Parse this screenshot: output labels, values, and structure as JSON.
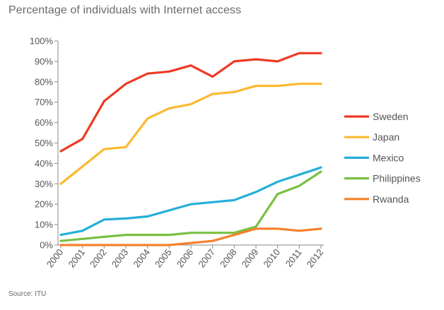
{
  "chart_data": {
    "type": "line",
    "title": "Percentage of individuals with Internet access",
    "xlabel": "",
    "ylabel": "",
    "categories": [
      "2000",
      "2001",
      "2002",
      "2003",
      "2004",
      "2005",
      "2006",
      "2007",
      "2008",
      "2009",
      "2010",
      "2011",
      "2012"
    ],
    "y_ticks": [
      "0%",
      "10%",
      "20%",
      "30%",
      "40%",
      "50%",
      "60%",
      "70%",
      "80%",
      "90%",
      "100%"
    ],
    "ylim": [
      0,
      100
    ],
    "grid": false,
    "legend_position": "right",
    "series": [
      {
        "name": "Sweden",
        "color": "#ee3a24",
        "values": [
          46,
          52,
          70.5,
          79,
          84,
          85,
          88,
          82.5,
          90,
          91,
          90,
          94,
          94
        ]
      },
      {
        "name": "Japan",
        "color": "#fbb92f",
        "values": [
          30,
          38.5,
          47,
          48,
          62,
          67,
          69,
          74,
          75,
          78,
          78,
          79,
          79
        ]
      },
      {
        "name": "Mexico",
        "color": "#25afd8",
        "values": [
          5,
          7,
          12.5,
          13,
          14,
          17,
          20,
          21,
          22,
          26,
          31,
          34.5,
          38
        ]
      },
      {
        "name": "Philippines",
        "color": "#77c043",
        "values": [
          2,
          3,
          4,
          5,
          5,
          5,
          6,
          6,
          6,
          9,
          25,
          29,
          36
        ]
      },
      {
        "name": "Rwanda",
        "color": "#f5812d",
        "values": [
          0,
          0,
          0,
          0,
          0,
          0,
          1,
          2,
          5,
          8,
          8,
          7,
          8
        ]
      }
    ]
  },
  "source": "Source: ITU"
}
